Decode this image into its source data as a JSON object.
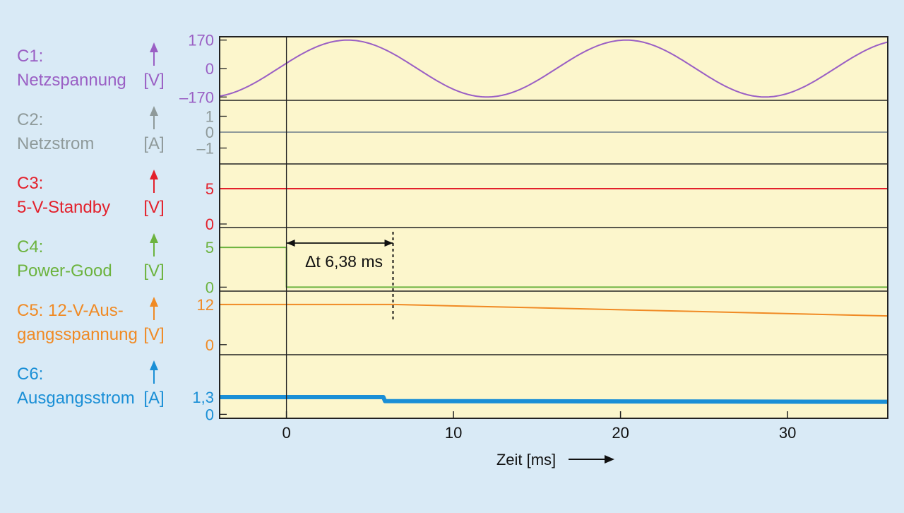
{
  "chart_data": {
    "type": "line",
    "xlabel": "Zeit [ms]",
    "x_ticks": [
      0,
      10,
      20,
      30
    ],
    "xlim": [
      -4,
      36
    ],
    "annotation": {
      "text": "Δt 6,38 ms",
      "x_start": 0,
      "x_end": 6.38
    },
    "channels": [
      {
        "id": "C1",
        "line1": "C1:",
        "line2": "Netzspannung",
        "unit": "[V]",
        "color": "#9a5fc4",
        "tick_labels": [
          "170",
          "0",
          "–170"
        ],
        "tick_values": [
          170,
          0,
          -170
        ],
        "ylim": [
          -190,
          190
        ],
        "series": {
          "kind": "sine",
          "amplitude": 170,
          "frequency_hz": 60,
          "phase_zero_ms": -0.5
        }
      },
      {
        "id": "C2",
        "line1": "C2:",
        "line2": "Netzstrom",
        "unit": "[A]",
        "color": "#8f9a9a",
        "tick_labels": [
          "1",
          "0",
          "–1"
        ],
        "tick_values": [
          1,
          0,
          -1
        ],
        "ylim": [
          -2,
          2
        ],
        "series": {
          "x": [
            -4,
            36
          ],
          "y": [
            0,
            0
          ]
        }
      },
      {
        "id": "C3",
        "line1": "C3:",
        "line2": "5-V-Standby",
        "unit": "[V]",
        "color": "#e3202b",
        "tick_labels": [
          "5",
          "0"
        ],
        "tick_values": [
          5,
          0
        ],
        "ylim": [
          -0.5,
          8.5
        ],
        "series": {
          "x": [
            -4,
            36
          ],
          "y": [
            5,
            5
          ]
        }
      },
      {
        "id": "C4",
        "line1": "C4:",
        "line2": "Power-Good",
        "unit": "[V]",
        "color": "#6cb33e",
        "tick_labels": [
          "5",
          "0"
        ],
        "tick_values": [
          5,
          0
        ],
        "ylim": [
          -0.5,
          7.5
        ],
        "series": {
          "x": [
            -4,
            0,
            0,
            36
          ],
          "y": [
            5,
            5,
            0,
            0
          ]
        }
      },
      {
        "id": "C5",
        "line1": "C5: 12-V-Aus-",
        "line2": "gangsspannung",
        "unit": "[V]",
        "color": "#f08a24",
        "tick_labels": [
          "12",
          "0"
        ],
        "tick_values": [
          12,
          0
        ],
        "ylim": [
          -3,
          16
        ],
        "series": {
          "x": [
            -4,
            6.4,
            36
          ],
          "y": [
            12,
            12,
            8.6
          ]
        }
      },
      {
        "id": "C6",
        "line1": "C6:",
        "line2": "Ausgangsstrom",
        "unit": "[A]",
        "color": "#1a8fd6",
        "tick_labels": [
          "1,3",
          "0"
        ],
        "tick_values": [
          1.3,
          0
        ],
        "ylim": [
          -0.3,
          4.5
        ],
        "series": {
          "x": [
            -4,
            5.8,
            5.9,
            36
          ],
          "y": [
            1.3,
            1.3,
            1.0,
            0.95
          ]
        }
      }
    ]
  }
}
